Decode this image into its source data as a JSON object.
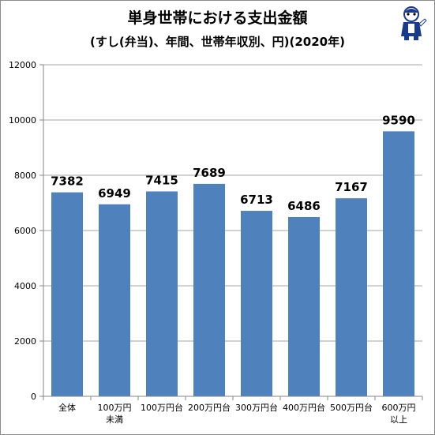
{
  "chart_data": {
    "type": "bar",
    "title": "単身世帯における支出金額",
    "subtitle": "(すし(弁当)、年間、世帯年収別、円)(2020年)",
    "categories": [
      [
        "全体"
      ],
      [
        "100万円",
        "未満"
      ],
      [
        "100万円台"
      ],
      [
        "200万円台"
      ],
      [
        "300万円台"
      ],
      [
        "400万円台"
      ],
      [
        "500万円台"
      ],
      [
        "600万円",
        "以上"
      ]
    ],
    "values": [
      7382,
      6949,
      7415,
      7689,
      6713,
      6486,
      7167,
      9590
    ],
    "data_labels": [
      "7382",
      "6949",
      "7415",
      "7689",
      "6713",
      "6486",
      "7167",
      "9590"
    ],
    "ylim": [
      0,
      12000
    ],
    "yticks": [
      "0",
      "2000",
      "4000",
      "6000",
      "8000",
      "10000",
      "12000"
    ],
    "grid": true,
    "legend": "none",
    "bar_color": "#4f81bd",
    "grid_color": "#a6a6a6"
  }
}
